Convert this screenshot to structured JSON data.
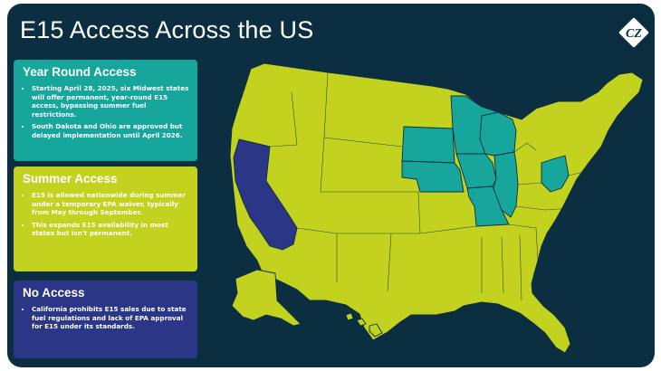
{
  "title": "E15 Access Across the US",
  "logo": {
    "icon": "cz-diamond-logo",
    "text": "CZ"
  },
  "colors": {
    "background": "#0b2f40",
    "year_round": "#17a69c",
    "summer": "#c3d21e",
    "no_access": "#2b3687",
    "border": "#0b2f40"
  },
  "legend": {
    "year_round": {
      "heading": "Year Round Access",
      "bullets": [
        "Starting April 28, 2025, six Midwest states will offer permanent, year-round E15 access, bypassing summer fuel restrictions.",
        "South Dakota and Ohio are approved but delayed implementation until April 2026."
      ]
    },
    "summer": {
      "heading": "Summer Access",
      "bullets": [
        "E15 is allowed nationwide during summer under a temporary EPA waiver, typically from May through September.",
        "This expands E15 availability in most states but isn't permanent."
      ]
    },
    "no_access": {
      "heading": "No Access",
      "bullets": [
        "California prohibits E15 sales due to state fuel regulations and lack of EPA approval for E15 under its standards."
      ]
    }
  },
  "map": {
    "states_year_round": [
      "MN",
      "IA",
      "NE",
      "IL",
      "MO",
      "WI",
      "SD",
      "OH"
    ],
    "states_no_access": [
      "CA"
    ],
    "states_summer": "all other states"
  }
}
